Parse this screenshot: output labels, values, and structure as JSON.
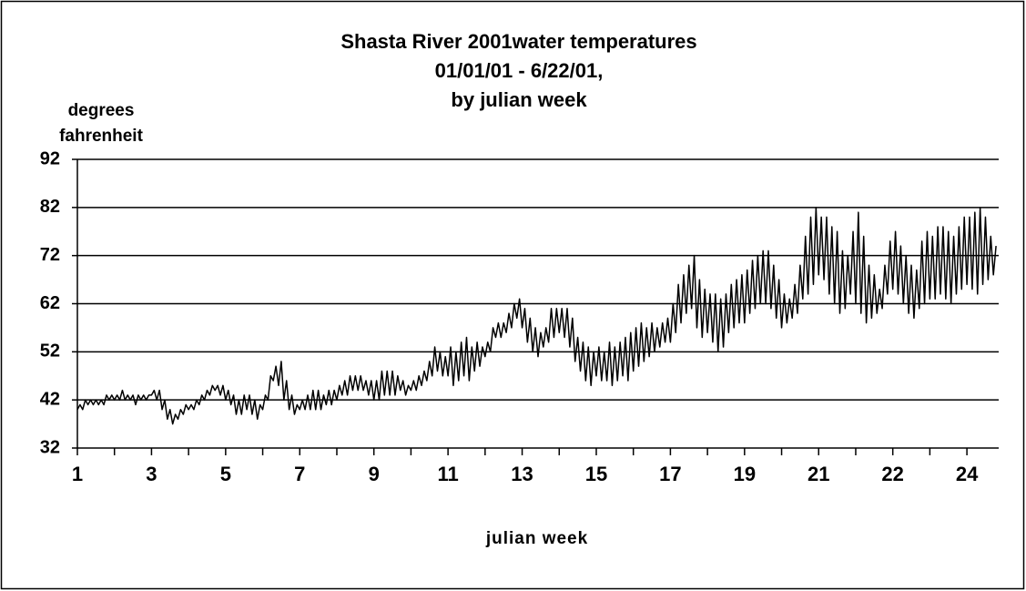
{
  "chart_data": {
    "type": "line",
    "title": [
      "Shasta River 2001water temperatures",
      "01/01/01 - 6/22/01,",
      "by julian week"
    ],
    "ylabel": [
      "degrees",
      "fahrenheit"
    ],
    "xlabel": "julian week",
    "color": "#000000",
    "grid": true,
    "ylim": [
      32,
      92
    ],
    "yticks": [
      32,
      42,
      52,
      62,
      72,
      82,
      92
    ],
    "xlim": [
      0,
      174
    ],
    "xticks": [
      {
        "value": 0,
        "label": "1"
      },
      {
        "value": 14,
        "label": "3"
      },
      {
        "value": 28,
        "label": "5"
      },
      {
        "value": 42,
        "label": "7"
      },
      {
        "value": 56,
        "label": "9"
      },
      {
        "value": 70,
        "label": "11"
      },
      {
        "value": 84,
        "label": "13"
      },
      {
        "value": 98,
        "label": "15"
      },
      {
        "value": 112,
        "label": "17"
      },
      {
        "value": 126,
        "label": "19"
      },
      {
        "value": 140,
        "label": "21"
      },
      {
        "value": 154,
        "label": "22"
      },
      {
        "value": 168,
        "label": "24"
      }
    ],
    "xminorticks": [
      7,
      21,
      35,
      49,
      63,
      77,
      91,
      105,
      119,
      133,
      147,
      161
    ],
    "x": [
      0,
      0.5,
      1,
      1.5,
      2,
      2.5,
      3,
      3.5,
      4,
      4.5,
      5,
      5.5,
      6,
      6.5,
      7,
      7.5,
      8,
      8.5,
      9,
      9.5,
      10,
      10.5,
      11,
      11.5,
      12,
      12.5,
      13,
      13.5,
      14,
      14.5,
      15,
      15.5,
      16,
      16.5,
      17,
      17.5,
      18,
      18.5,
      19,
      19.5,
      20,
      20.5,
      21,
      21.5,
      22,
      22.5,
      23,
      23.5,
      24,
      24.5,
      25,
      25.5,
      26,
      26.5,
      27,
      27.5,
      28,
      28.5,
      29,
      29.5,
      30,
      30.5,
      31,
      31.5,
      32,
      32.5,
      33,
      33.5,
      34,
      34.5,
      35,
      35.5,
      36,
      36.5,
      37,
      37.5,
      38,
      38.5,
      39,
      39.5,
      40,
      40.5,
      41,
      41.5,
      42,
      42.5,
      43,
      43.5,
      44,
      44.5,
      45,
      45.5,
      46,
      46.5,
      47,
      47.5,
      48,
      48.5,
      49,
      49.5,
      50,
      50.5,
      51,
      51.5,
      52,
      52.5,
      53,
      53.5,
      54,
      54.5,
      55,
      55.5,
      56,
      56.5,
      57,
      57.5,
      58,
      58.5,
      59,
      59.5,
      60,
      60.5,
      61,
      61.5,
      62,
      62.5,
      63,
      63.5,
      64,
      64.5,
      65,
      65.5,
      66,
      66.5,
      67,
      67.5,
      68,
      68.5,
      69,
      69.5,
      70,
      70.5,
      71,
      71.5,
      72,
      72.5,
      73,
      73.5,
      74,
      74.5,
      75,
      75.5,
      76,
      76.5,
      77,
      77.5,
      78,
      78.5,
      79,
      79.5,
      80,
      80.5,
      81,
      81.5,
      82,
      82.5,
      83,
      83.5,
      84,
      84.5,
      85,
      85.5,
      86,
      86.5,
      87,
      87.5,
      88,
      88.5,
      89,
      89.5,
      90,
      90.5,
      91,
      91.5,
      92,
      92.5,
      93,
      93.5,
      94,
      94.5,
      95,
      95.5,
      96,
      96.5,
      97,
      97.5,
      98,
      98.5,
      99,
      99.5,
      100,
      100.5,
      101,
      101.5,
      102,
      102.5,
      103,
      103.5,
      104,
      104.5,
      105,
      105.5,
      106,
      106.5,
      107,
      107.5,
      108,
      108.5,
      109,
      109.5,
      110,
      110.5,
      111,
      111.5,
      112,
      112.5,
      113,
      113.5,
      114,
      114.5,
      115,
      115.5,
      116,
      116.5,
      117,
      117.5,
      118,
      118.5,
      119,
      119.5,
      120,
      120.5,
      121,
      121.5,
      122,
      122.5,
      123,
      123.5,
      124,
      124.5,
      125,
      125.5,
      126,
      126.5,
      127,
      127.5,
      128,
      128.5,
      129,
      129.5,
      130,
      130.5,
      131,
      131.5,
      132,
      132.5,
      133,
      133.5,
      134,
      134.5,
      135,
      135.5,
      136,
      136.5,
      137,
      137.5,
      138,
      138.5,
      139,
      139.5,
      140,
      140.5,
      141,
      141.5,
      142,
      142.5,
      143,
      143.5,
      144,
      144.5,
      145,
      145.5,
      146,
      146.5,
      147,
      147.5,
      148,
      148.5,
      149,
      149.5,
      150,
      150.5,
      151,
      151.5,
      152,
      152.5,
      153,
      153.5,
      154,
      154.5,
      155,
      155.5,
      156,
      156.5,
      157,
      157.5,
      158,
      158.5,
      159,
      159.5,
      160,
      160.5,
      161,
      161.5,
      162,
      162.5,
      163,
      163.5,
      164,
      164.5,
      165,
      165.5,
      166,
      166.5,
      167,
      167.5,
      168,
      168.5,
      169,
      169.5,
      170,
      170.5,
      171,
      171.5,
      172,
      172.5,
      173,
      173.5
    ],
    "values": [
      40,
      41,
      40,
      42,
      41,
      42,
      41,
      42,
      41,
      42,
      41,
      43,
      42,
      43,
      42,
      43,
      42,
      44,
      42,
      43,
      42,
      43,
      41,
      43,
      42,
      43,
      42,
      43,
      43,
      44,
      42,
      44,
      40,
      42,
      38,
      40,
      37,
      39,
      38,
      40,
      39,
      41,
      40,
      41,
      40,
      42,
      41,
      43,
      42,
      44,
      43,
      45,
      44,
      45,
      43,
      45,
      42,
      44,
      41,
      43,
      39,
      42,
      39,
      43,
      40,
      43,
      39,
      42,
      38,
      41,
      40,
      43,
      42,
      47,
      46,
      49,
      45,
      50,
      42,
      46,
      40,
      43,
      39,
      41,
      40,
      42,
      40,
      43,
      40,
      44,
      40,
      44,
      40,
      43,
      41,
      44,
      41,
      44,
      42,
      45,
      43,
      46,
      43,
      47,
      44,
      47,
      44,
      47,
      44,
      46,
      43,
      46,
      42,
      46,
      42,
      48,
      43,
      48,
      43,
      48,
      43,
      47,
      44,
      46,
      43,
      45,
      44,
      46,
      44,
      47,
      45,
      48,
      46,
      50,
      47,
      53,
      48,
      52,
      47,
      51,
      47,
      53,
      45,
      52,
      46,
      54,
      47,
      55,
      46,
      53,
      48,
      54,
      49,
      53,
      51,
      54,
      52,
      57,
      55,
      58,
      55,
      58,
      56,
      60,
      57,
      62,
      59,
      63,
      57,
      61,
      54,
      59,
      52,
      57,
      51,
      56,
      53,
      57,
      54,
      61,
      55,
      61,
      56,
      61,
      55,
      61,
      53,
      59,
      50,
      55,
      48,
      54,
      46,
      53,
      45,
      52,
      47,
      53,
      46,
      52,
      46,
      54,
      45,
      53,
      46,
      54,
      47,
      55,
      46,
      56,
      48,
      57,
      49,
      58,
      50,
      57,
      51,
      58,
      52,
      57,
      53,
      58,
      54,
      59,
      54,
      62,
      56,
      66,
      58,
      68,
      60,
      70,
      61,
      72,
      57,
      67,
      55,
      65,
      56,
      64,
      54,
      64,
      52,
      63,
      53,
      64,
      56,
      66,
      57,
      67,
      58,
      68,
      58,
      69,
      60,
      71,
      61,
      72,
      62,
      73,
      62,
      73,
      61,
      70,
      59,
      67,
      57,
      64,
      58,
      63,
      59,
      66,
      60,
      70,
      63,
      76,
      64,
      80,
      66,
      82,
      68,
      80,
      67,
      80,
      64,
      78,
      62,
      77,
      60,
      73,
      61,
      72,
      64,
      77,
      62,
      81,
      60,
      76,
      58,
      70,
      59,
      68,
      60,
      65,
      61,
      70,
      64,
      75,
      65,
      77,
      64,
      74,
      62,
      72,
      60,
      70,
      59,
      69,
      61,
      75,
      62,
      77,
      63,
      76,
      63,
      78,
      64,
      78,
      63,
      77,
      62,
      76,
      64,
      78,
      65,
      80,
      66,
      80,
      65,
      81,
      64,
      82,
      66,
      80,
      67,
      76,
      68,
      74
    ]
  }
}
